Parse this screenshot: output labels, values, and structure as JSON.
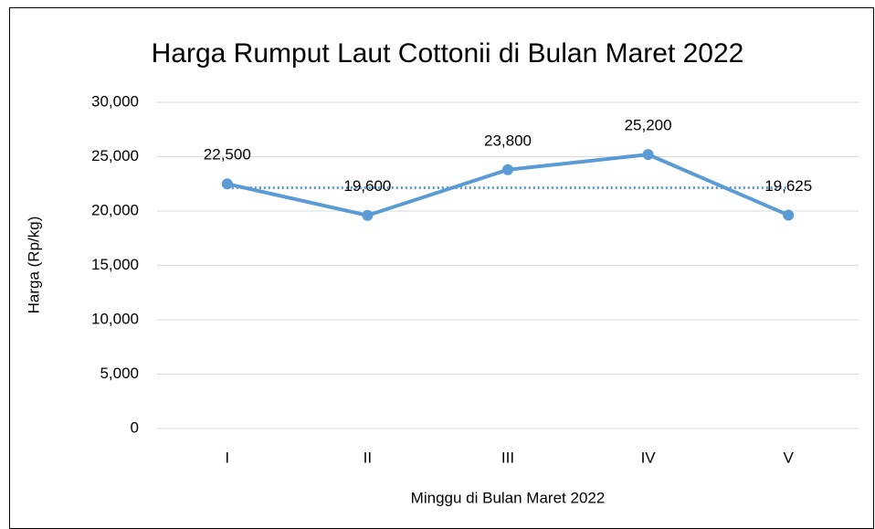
{
  "chart_data": {
    "type": "line",
    "title": "Harga Rumput Laut Cottonii di Bulan Maret 2022",
    "x_label": "Minggu di Bulan Maret 2022",
    "y_label": "Harga (Rp/kg)",
    "categories": [
      "I",
      "II",
      "III",
      "IV",
      "V"
    ],
    "series": [
      {
        "color": "#5b9bd5",
        "values": [
          22500,
          19600,
          23800,
          25200,
          19625
        ],
        "value_labels": [
          "22,500",
          "19,600",
          "23,800",
          "25,200",
          "19,625"
        ]
      }
    ],
    "reference_line": {
      "value": 22145,
      "color": "#5b9bd5",
      "style": "dotted"
    },
    "ylim": [
      0,
      30000
    ],
    "yticks": [
      0,
      {
        "value": 5000,
        "label": "5,000"
      },
      {
        "value": 10000,
        "label": "10,000"
      },
      {
        "value": 15000,
        "label": "15,000"
      },
      {
        "value": 20000,
        "label": "20,000"
      },
      {
        "value": 25000,
        "label": "25,000"
      },
      {
        "value": 30000,
        "label": "30,000"
      }
    ],
    "grid": true
  }
}
